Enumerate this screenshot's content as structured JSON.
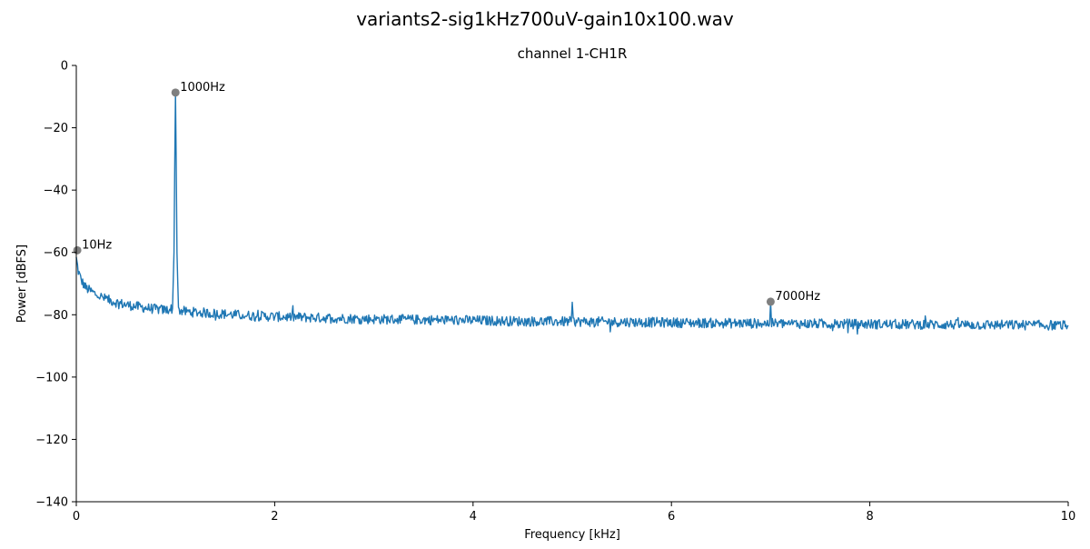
{
  "chart_data": {
    "type": "line",
    "title": "variants2-sig1kHz700uV-gain10x100.wav",
    "subtitle": "channel 1-CH1R",
    "xlabel": "Frequency [kHz]",
    "ylabel": "Power [dBFS]",
    "xlim": [
      0,
      10
    ],
    "ylim": [
      -140,
      0
    ],
    "xticks": [
      0,
      2,
      4,
      6,
      8,
      10
    ],
    "yticks": [
      0,
      -20,
      -40,
      -60,
      -80,
      -100,
      -120,
      -140
    ],
    "xtick_labels": [
      "0",
      "2",
      "4",
      "6",
      "8",
      "10"
    ],
    "ytick_labels": [
      "0",
      "−20",
      "−40",
      "−60",
      "−80",
      "−100",
      "−120",
      "−140"
    ],
    "grid": false,
    "colors": {
      "line": "#1f77b4",
      "marker": "#7f7f7f"
    },
    "series": [
      {
        "points": [
          [
            0.0,
            -62
          ],
          [
            0.005,
            -63
          ],
          [
            0.02,
            -66
          ],
          [
            0.05,
            -69
          ],
          [
            0.1,
            -71.5
          ],
          [
            0.2,
            -73.5
          ],
          [
            0.3,
            -75
          ],
          [
            0.4,
            -76
          ],
          [
            0.5,
            -76.8
          ],
          [
            0.6,
            -77.3
          ],
          [
            0.7,
            -77.8
          ],
          [
            0.8,
            -78.2
          ],
          [
            0.9,
            -78.5
          ],
          [
            0.97,
            -78
          ],
          [
            0.985,
            -60
          ],
          [
            0.993,
            -30
          ],
          [
            1.0,
            -8.7
          ],
          [
            1.007,
            -30
          ],
          [
            1.015,
            -60
          ],
          [
            1.03,
            -78.5
          ],
          [
            1.1,
            -79
          ],
          [
            1.3,
            -79.4
          ],
          [
            1.5,
            -79.8
          ],
          [
            1.7,
            -80.2
          ],
          [
            2.0,
            -80.6
          ],
          [
            2.5,
            -81
          ],
          [
            3.0,
            -81.4
          ],
          [
            3.5,
            -81.6
          ],
          [
            4.0,
            -81.8
          ],
          [
            4.5,
            -82.1
          ],
          [
            4.99,
            -82.2
          ],
          [
            5.0,
            -76
          ],
          [
            5.01,
            -82.2
          ],
          [
            5.5,
            -82.3
          ],
          [
            6.0,
            -82.5
          ],
          [
            6.5,
            -82.7
          ],
          [
            6.99,
            -82.8
          ],
          [
            7.0,
            -75.8
          ],
          [
            7.01,
            -82.8
          ],
          [
            7.5,
            -82.9
          ],
          [
            8.0,
            -83
          ],
          [
            8.5,
            -83.1
          ],
          [
            9.0,
            -83.2
          ],
          [
            9.5,
            -83.3
          ],
          [
            10.0,
            -83.4
          ]
        ]
      }
    ],
    "annotations": [
      {
        "x": 0.01,
        "y": -59.3,
        "label": "10Hz"
      },
      {
        "x": 1.0,
        "y": -8.7,
        "label": "1000Hz"
      },
      {
        "x": 7.0,
        "y": -75.8,
        "label": "7000Hz"
      }
    ]
  }
}
